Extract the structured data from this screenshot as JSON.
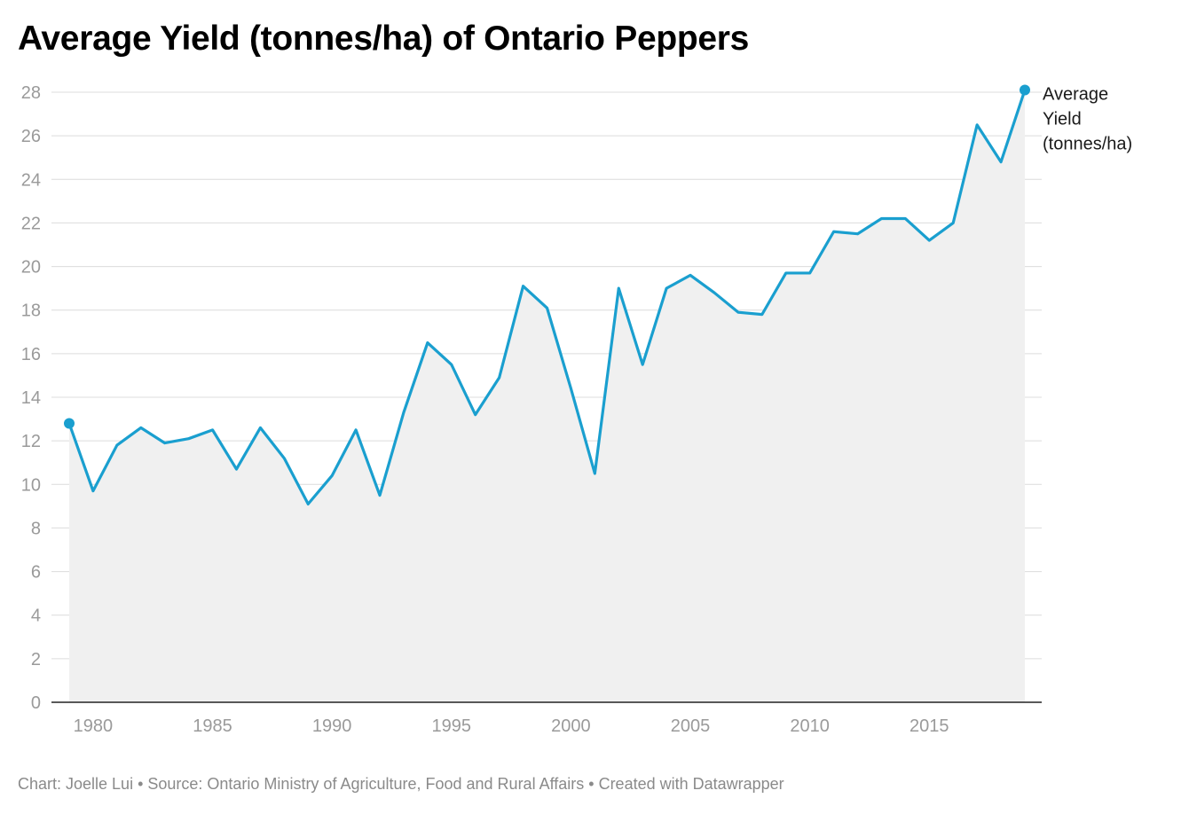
{
  "page": {
    "title": "Average Yield (tonnes/ha) of Ontario Peppers",
    "footer": "Chart: Joelle Lui • Source: Ontario Ministry of Agriculture, Food and Rural Affairs • Created with Datawrapper"
  },
  "chart_data": {
    "type": "area",
    "title": "Average Yield (tonnes/ha) of Ontario Peppers",
    "x": [
      1979,
      1980,
      1981,
      1982,
      1983,
      1984,
      1985,
      1986,
      1987,
      1988,
      1989,
      1990,
      1991,
      1992,
      1993,
      1994,
      1995,
      1996,
      1997,
      1998,
      1999,
      2000,
      2001,
      2002,
      2003,
      2004,
      2005,
      2006,
      2007,
      2008,
      2009,
      2010,
      2011,
      2012,
      2013,
      2014,
      2015,
      2016,
      2017,
      2018,
      2019
    ],
    "series": [
      {
        "name": "Average Yield (tonnes/ha)",
        "label_lines": [
          "Average",
          "Yield",
          "(tonnes/ha)"
        ],
        "color": "#1a9fcf",
        "values": [
          12.8,
          9.7,
          11.8,
          12.6,
          11.9,
          12.1,
          12.5,
          10.7,
          12.6,
          11.2,
          9.1,
          10.4,
          12.5,
          9.5,
          13.3,
          16.5,
          15.5,
          13.2,
          14.9,
          19.1,
          18.1,
          14.4,
          10.5,
          19.0,
          15.5,
          19.0,
          19.6,
          18.8,
          17.9,
          17.8,
          19.7,
          19.7,
          21.6,
          21.5,
          22.2,
          22.2,
          21.2,
          22.0,
          26.5,
          24.8,
          28.1
        ]
      }
    ],
    "xticks": [
      1980,
      1985,
      1990,
      1995,
      2000,
      2005,
      2010,
      2015
    ],
    "yticks": [
      0,
      2,
      4,
      6,
      8,
      10,
      12,
      14,
      16,
      18,
      20,
      22,
      24,
      26,
      28
    ],
    "xlim": [
      1979,
      2019
    ],
    "ylim": [
      0,
      28
    ],
    "grid": true,
    "area_fill": "#f0f0f0",
    "xlabel": "",
    "ylabel": ""
  }
}
